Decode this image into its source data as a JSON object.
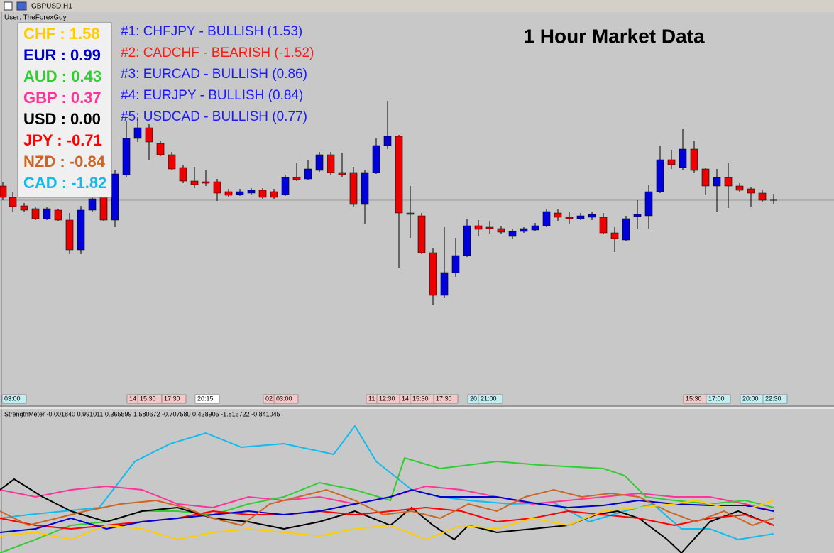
{
  "window": {
    "title": "GBPUSD,H1",
    "user": "User: TheForexGuy"
  },
  "heading": "1 Hour Market Data",
  "strength": [
    {
      "currency": "CHF",
      "value": "1.58",
      "color": "#ffcc00"
    },
    {
      "currency": "EUR",
      "value": "0.99",
      "color": "#0000cc"
    },
    {
      "currency": "AUD",
      "value": "0.43",
      "color": "#33cc33"
    },
    {
      "currency": "GBP",
      "value": "0.37",
      "color": "#ff3399"
    },
    {
      "currency": "USD",
      "value": "0.00",
      "color": "#000000"
    },
    {
      "currency": "JPY",
      "value": "-0.71",
      "color": "#ff0000"
    },
    {
      "currency": "NZD",
      "value": "-0.84",
      "color": "#cc6622"
    },
    {
      "currency": "CAD",
      "value": "-1.82",
      "color": "#11bbee"
    }
  ],
  "rankings": [
    {
      "text": "#1: CHFJPY - BULLISH (1.53)",
      "color": "#1a1aff"
    },
    {
      "text": "#2: CADCHF - BEARISH (-1.52)",
      "color": "#ff1a1a"
    },
    {
      "text": "#3: EURCAD - BULLISH (0.86)",
      "color": "#1a1aff"
    },
    {
      "text": "#4: EURJPY - BULLISH (0.84)",
      "color": "#1a1aff"
    },
    {
      "text": "#5: USDCAD - BULLISH (0.77)",
      "color": "#1a1aff"
    }
  ],
  "time_labels": [
    "03:00",
    "14",
    "15:30",
    "17:30",
    "20:15",
    "02",
    "03:00",
    "11",
    "12:30",
    "14",
    "15:30",
    "17:30",
    "20",
    "21:00",
    "15:30",
    "17:00",
    "20:00",
    "22:30"
  ],
  "indicator": "StrengthMeter -0.001840 0.991011 0.365599 1.580672 -0.707580 0.428905 -1.815722 -0.841045"
}
